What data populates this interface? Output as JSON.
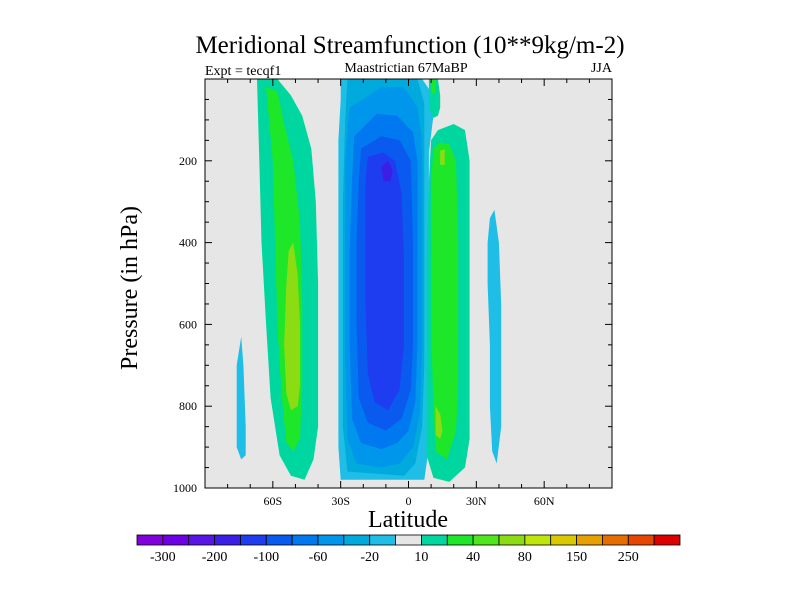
{
  "chart_data": {
    "type": "heatmap",
    "title": "Meridional Streamfunction (10**9kg/m-2)",
    "left_string": "Expt = tecqf1",
    "center_string": "Maastrictian 67MaBP",
    "right_string": "JJA",
    "xlabel": "Latitude",
    "ylabel": "Pressure (in hPa)",
    "xlim": [
      -90,
      90
    ],
    "ylim": [
      1000,
      0
    ],
    "x_ticks": [
      {
        "value": -60,
        "label": "60S"
      },
      {
        "value": -30,
        "label": "30S"
      },
      {
        "value": 0,
        "label": "0"
      },
      {
        "value": 30,
        "label": "30N"
      },
      {
        "value": 60,
        "label": "60N"
      }
    ],
    "y_ticks": [
      {
        "value": 200,
        "label": "200"
      },
      {
        "value": 400,
        "label": "400"
      },
      {
        "value": 600,
        "label": "600"
      },
      {
        "value": 800,
        "label": "800"
      },
      {
        "value": 1000,
        "label": "1000"
      }
    ],
    "background_color": "#e6e6e6",
    "colorbar": {
      "levels": [
        -300,
        -250,
        -200,
        -150,
        -100,
        -80,
        -60,
        -40,
        -20,
        -10,
        10,
        20,
        40,
        60,
        80,
        100,
        150,
        200,
        250,
        300
      ],
      "labels": [
        -300,
        -200,
        -100,
        -60,
        -20,
        10,
        40,
        80,
        150,
        250
      ],
      "colors": [
        "#8200dc",
        "#6e00e6",
        "#5a14e6",
        "#3c1ee6",
        "#1e3cf0",
        "#0a5af0",
        "#0078f0",
        "#0096eb",
        "#00aadc",
        "#1ebee6",
        "#e6e6e6",
        "#00d7a0",
        "#1ee628",
        "#50e61e",
        "#8cdc14",
        "#bee60a",
        "#dcc800",
        "#e6a000",
        "#e66e00",
        "#e64600",
        "#dc0000"
      ]
    },
    "regions": [
      {
        "name": "sh-cell-outer",
        "level": 20,
        "color": "#00d7a0",
        "pts": [
          [
            -67,
            0
          ],
          [
            -58,
            0
          ],
          [
            -52,
            40
          ],
          [
            -47,
            90
          ],
          [
            -43,
            170
          ],
          [
            -41,
            300
          ],
          [
            -40,
            500
          ],
          [
            -40,
            700
          ],
          [
            -40,
            850
          ],
          [
            -42,
            930
          ],
          [
            -46,
            980
          ],
          [
            -52,
            970
          ],
          [
            -57,
            920
          ],
          [
            -61,
            780
          ],
          [
            -63,
            600
          ],
          [
            -65,
            400
          ],
          [
            -66,
            200
          ]
        ]
      },
      {
        "name": "sh-cell-mid",
        "level": 40,
        "color": "#1ee628",
        "pts": [
          [
            -63,
            20
          ],
          [
            -58,
            30
          ],
          [
            -55,
            110
          ],
          [
            -51,
            200
          ],
          [
            -48,
            350
          ],
          [
            -47,
            550
          ],
          [
            -47,
            750
          ],
          [
            -48,
            880
          ],
          [
            -51,
            910
          ],
          [
            -54,
            890
          ],
          [
            -56,
            780
          ],
          [
            -58,
            600
          ],
          [
            -59,
            400
          ],
          [
            -60,
            200
          ],
          [
            -62,
            80
          ]
        ]
      },
      {
        "name": "sh-cell-core",
        "level": 60,
        "color": "#8cdc14",
        "pts": [
          [
            -51,
            400
          ],
          [
            -49,
            480
          ],
          [
            -48,
            600
          ],
          [
            -48,
            750
          ],
          [
            -49,
            800
          ],
          [
            -52,
            810
          ],
          [
            -54,
            770
          ],
          [
            -55,
            650
          ],
          [
            -54,
            500
          ],
          [
            -53,
            420
          ]
        ]
      },
      {
        "name": "sh-polar-cell",
        "level": -10,
        "color": "#1ebee6",
        "pts": [
          [
            -74,
            630
          ],
          [
            -73,
            700
          ],
          [
            -72,
            850
          ],
          [
            -72,
            920
          ],
          [
            -74,
            930
          ],
          [
            -76,
            900
          ],
          [
            -76,
            800
          ],
          [
            -76,
            700
          ]
        ]
      },
      {
        "name": "eq-cell-l1",
        "level": -10,
        "color": "#1ebee6",
        "pts": [
          [
            -30,
            0
          ],
          [
            6,
            0
          ],
          [
            11,
            40
          ],
          [
            11,
            90
          ],
          [
            9,
            180
          ],
          [
            9,
            350
          ],
          [
            9,
            550
          ],
          [
            9,
            750
          ],
          [
            9,
            900
          ],
          [
            7,
            980
          ],
          [
            -30,
            980
          ],
          [
            -31,
            900
          ],
          [
            -31,
            700
          ],
          [
            -31,
            500
          ],
          [
            -31,
            300
          ],
          [
            -31,
            150
          ],
          [
            -30,
            50
          ]
        ]
      },
      {
        "name": "eq-cell-l2",
        "level": -20,
        "color": "#00aadc",
        "pts": [
          [
            -27,
            0
          ],
          [
            4,
            0
          ],
          [
            7,
            60
          ],
          [
            7,
            180
          ],
          [
            7,
            400
          ],
          [
            7,
            700
          ],
          [
            6,
            850
          ],
          [
            3,
            940
          ],
          [
            -2,
            970
          ],
          [
            -27,
            960
          ],
          [
            -29,
            850
          ],
          [
            -29,
            600
          ],
          [
            -29,
            300
          ],
          [
            -28,
            100
          ]
        ]
      },
      {
        "name": "eq-cell-l3",
        "level": -40,
        "color": "#0096eb",
        "pts": [
          [
            -26,
            70
          ],
          [
            -12,
            20
          ],
          [
            -2,
            20
          ],
          [
            4,
            70
          ],
          [
            6,
            160
          ],
          [
            6,
            400
          ],
          [
            6,
            650
          ],
          [
            5,
            820
          ],
          [
            2,
            900
          ],
          [
            -4,
            940
          ],
          [
            -12,
            950
          ],
          [
            -23,
            940
          ],
          [
            -27,
            880
          ],
          [
            -28,
            700
          ],
          [
            -28,
            450
          ],
          [
            -28,
            220
          ],
          [
            -27,
            120
          ]
        ]
      },
      {
        "name": "eq-cell-l4",
        "level": -60,
        "color": "#0078f0",
        "pts": [
          [
            -24,
            140
          ],
          [
            -14,
            85
          ],
          [
            -5,
            90
          ],
          [
            2,
            130
          ],
          [
            4,
            200
          ],
          [
            4,
            400
          ],
          [
            4,
            650
          ],
          [
            3,
            790
          ],
          [
            0,
            860
          ],
          [
            -5,
            890
          ],
          [
            -12,
            905
          ],
          [
            -21,
            890
          ],
          [
            -25,
            830
          ],
          [
            -26,
            650
          ],
          [
            -26,
            420
          ],
          [
            -25,
            240
          ]
        ]
      },
      {
        "name": "eq-cell-l5",
        "level": -80,
        "color": "#0a5af0",
        "pts": [
          [
            -21,
            170
          ],
          [
            -12,
            140
          ],
          [
            -4,
            150
          ],
          [
            1,
            200
          ],
          [
            2,
            400
          ],
          [
            2,
            650
          ],
          [
            1,
            760
          ],
          [
            -3,
            830
          ],
          [
            -10,
            860
          ],
          [
            -18,
            840
          ],
          [
            -22,
            780
          ],
          [
            -23,
            600
          ],
          [
            -23,
            400
          ],
          [
            -22,
            250
          ]
        ]
      },
      {
        "name": "eq-cell-l6",
        "level": -100,
        "color": "#1e3cf0",
        "pts": [
          [
            -18,
            190
          ],
          [
            -11,
            180
          ],
          [
            -6,
            200
          ],
          [
            -3,
            280
          ],
          [
            -2,
            450
          ],
          [
            -2,
            650
          ],
          [
            -4,
            760
          ],
          [
            -9,
            810
          ],
          [
            -15,
            790
          ],
          [
            -18,
            720
          ],
          [
            -19,
            550
          ],
          [
            -19,
            350
          ],
          [
            -19,
            250
          ]
        ]
      },
      {
        "name": "eq-cell-core",
        "level": -150,
        "color": "#3c1ee6",
        "pts": [
          [
            -12,
            215
          ],
          [
            -9,
            200
          ],
          [
            -7,
            225
          ],
          [
            -8,
            250
          ],
          [
            -11,
            250
          ]
        ]
      },
      {
        "name": "nh-cell-outer",
        "level": 20,
        "color": "#00d7a0",
        "pts": [
          [
            10,
            150
          ],
          [
            13,
            125
          ],
          [
            20,
            110
          ],
          [
            25,
            125
          ],
          [
            27,
            200
          ],
          [
            27,
            400
          ],
          [
            27,
            600
          ],
          [
            27,
            800
          ],
          [
            27,
            880
          ],
          [
            25,
            950
          ],
          [
            18,
            985
          ],
          [
            11,
            975
          ],
          [
            8,
            920
          ],
          [
            8,
            700
          ],
          [
            8,
            450
          ],
          [
            9,
            250
          ]
        ]
      },
      {
        "name": "nh-cell-core",
        "level": 40,
        "color": "#1ee628",
        "pts": [
          [
            11,
            170
          ],
          [
            14,
            155
          ],
          [
            18,
            160
          ],
          [
            21,
            200
          ],
          [
            22,
            400
          ],
          [
            22,
            600
          ],
          [
            22,
            750
          ],
          [
            21,
            860
          ],
          [
            17,
            930
          ],
          [
            12,
            910
          ],
          [
            11,
            800
          ],
          [
            10,
            600
          ],
          [
            10,
            400
          ],
          [
            10,
            250
          ]
        ]
      },
      {
        "name": "nh-cell-lobe-top",
        "level": 60,
        "color": "#8cdc14",
        "pts": [
          [
            14,
            175
          ],
          [
            16,
            172
          ],
          [
            16,
            210
          ],
          [
            14,
            210
          ]
        ]
      },
      {
        "name": "nh-cell-lobe-bottom",
        "level": 60,
        "color": "#8cdc14",
        "pts": [
          [
            12,
            800
          ],
          [
            14,
            820
          ],
          [
            15,
            860
          ],
          [
            14,
            880
          ],
          [
            12,
            870
          ]
        ]
      },
      {
        "name": "nh-upper-blob-outer",
        "level": 20,
        "color": "#00d7a0",
        "pts": [
          [
            9,
            0
          ],
          [
            13,
            0
          ],
          [
            14,
            40
          ],
          [
            14,
            70
          ],
          [
            13,
            90
          ],
          [
            11,
            95
          ],
          [
            9,
            70
          ],
          [
            9,
            30
          ]
        ]
      },
      {
        "name": "nh-upper-blob-core",
        "level": 40,
        "color": "#1ee628",
        "pts": [
          [
            10,
            0
          ],
          [
            12,
            0
          ],
          [
            12,
            30
          ],
          [
            11,
            40
          ],
          [
            10,
            30
          ]
        ]
      },
      {
        "name": "nh-subtropic-cell",
        "level": -10,
        "color": "#1ebee6",
        "pts": [
          [
            36,
            340
          ],
          [
            38,
            320
          ],
          [
            40,
            400
          ],
          [
            41,
            550
          ],
          [
            41,
            700
          ],
          [
            41,
            850
          ],
          [
            39,
            940
          ],
          [
            37,
            910
          ],
          [
            36,
            800
          ],
          [
            36,
            650
          ],
          [
            35,
            500
          ],
          [
            35,
            400
          ]
        ]
      }
    ]
  }
}
